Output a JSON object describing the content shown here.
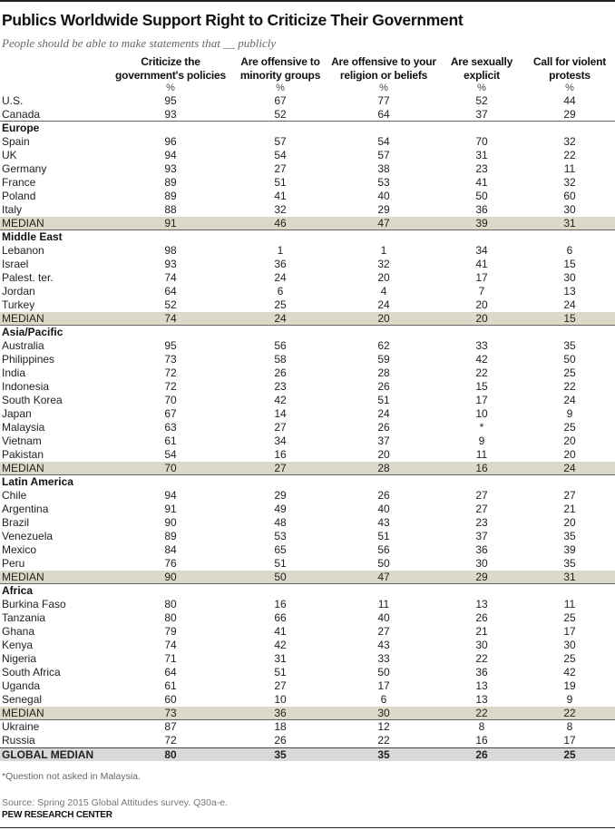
{
  "title": "Publics Worldwide Support Right to Criticize Their Government",
  "subtitle": "People should be able to make statements that __ publicly",
  "columns": [
    {
      "line1": "Criticize the",
      "line2": "government's policies",
      "unit": "%"
    },
    {
      "line1": "Are offensive to",
      "line2": "minority groups",
      "unit": "%"
    },
    {
      "line1": "Are offensive to your",
      "line2": "religion or beliefs",
      "unit": "%"
    },
    {
      "line1": "Are sexually",
      "line2": "explicit",
      "unit": "%"
    },
    {
      "line1": "Call for violent",
      "line2": "protests",
      "unit": "%"
    }
  ],
  "colors": {
    "median_fill": "#dcd9c8",
    "global_fill": "#d9d9d9"
  },
  "rows": [
    {
      "type": "country",
      "label": "U.S.",
      "values": [
        "95",
        "67",
        "77",
        "52",
        "44"
      ]
    },
    {
      "type": "country",
      "label": "Canada",
      "values": [
        "93",
        "52",
        "64",
        "37",
        "29"
      ],
      "rule": true
    },
    {
      "type": "region",
      "label": "Europe"
    },
    {
      "type": "country",
      "label": "Spain",
      "values": [
        "96",
        "57",
        "54",
        "70",
        "32"
      ]
    },
    {
      "type": "country",
      "label": "UK",
      "values": [
        "94",
        "54",
        "57",
        "31",
        "22"
      ]
    },
    {
      "type": "country",
      "label": "Germany",
      "values": [
        "93",
        "27",
        "38",
        "23",
        "11"
      ]
    },
    {
      "type": "country",
      "label": "France",
      "values": [
        "89",
        "51",
        "53",
        "41",
        "32"
      ]
    },
    {
      "type": "country",
      "label": "Poland",
      "values": [
        "89",
        "41",
        "40",
        "50",
        "60"
      ]
    },
    {
      "type": "country",
      "label": "Italy",
      "values": [
        "88",
        "32",
        "29",
        "36",
        "30"
      ]
    },
    {
      "type": "median",
      "label": "MEDIAN",
      "values": [
        "91",
        "46",
        "47",
        "39",
        "31"
      ],
      "rule": true
    },
    {
      "type": "region",
      "label": "Middle East"
    },
    {
      "type": "country",
      "label": "Lebanon",
      "values": [
        "98",
        "1",
        "1",
        "34",
        "6"
      ]
    },
    {
      "type": "country",
      "label": "Israel",
      "values": [
        "93",
        "36",
        "32",
        "41",
        "15"
      ]
    },
    {
      "type": "country",
      "label": "Palest. ter.",
      "values": [
        "74",
        "24",
        "20",
        "17",
        "30"
      ]
    },
    {
      "type": "country",
      "label": "Jordan",
      "values": [
        "64",
        "6",
        "4",
        "7",
        "13"
      ]
    },
    {
      "type": "country",
      "label": "Turkey",
      "values": [
        "52",
        "25",
        "24",
        "20",
        "24"
      ]
    },
    {
      "type": "median",
      "label": "MEDIAN",
      "values": [
        "74",
        "24",
        "20",
        "20",
        "15"
      ],
      "rule": true
    },
    {
      "type": "region",
      "label": "Asia/Pacific"
    },
    {
      "type": "country",
      "label": "Australia",
      "values": [
        "95",
        "56",
        "62",
        "33",
        "35"
      ]
    },
    {
      "type": "country",
      "label": "Philippines",
      "values": [
        "73",
        "58",
        "59",
        "42",
        "50"
      ]
    },
    {
      "type": "country",
      "label": "India",
      "values": [
        "72",
        "26",
        "28",
        "22",
        "25"
      ]
    },
    {
      "type": "country",
      "label": "Indonesia",
      "values": [
        "72",
        "23",
        "26",
        "15",
        "22"
      ]
    },
    {
      "type": "country",
      "label": "South Korea",
      "values": [
        "70",
        "42",
        "51",
        "17",
        "24"
      ]
    },
    {
      "type": "country",
      "label": "Japan",
      "values": [
        "67",
        "14",
        "24",
        "10",
        "9"
      ]
    },
    {
      "type": "country",
      "label": "Malaysia",
      "values": [
        "63",
        "27",
        "26",
        "*",
        "25"
      ]
    },
    {
      "type": "country",
      "label": "Vietnam",
      "values": [
        "61",
        "34",
        "37",
        "9",
        "20"
      ]
    },
    {
      "type": "country",
      "label": "Pakistan",
      "values": [
        "54",
        "16",
        "20",
        "11",
        "20"
      ]
    },
    {
      "type": "median",
      "label": "MEDIAN",
      "values": [
        "70",
        "27",
        "28",
        "16",
        "24"
      ],
      "rule": true
    },
    {
      "type": "region",
      "label": "Latin America"
    },
    {
      "type": "country",
      "label": "Chile",
      "values": [
        "94",
        "29",
        "26",
        "27",
        "27"
      ]
    },
    {
      "type": "country",
      "label": "Argentina",
      "values": [
        "91",
        "49",
        "40",
        "27",
        "21"
      ]
    },
    {
      "type": "country",
      "label": "Brazil",
      "values": [
        "90",
        "48",
        "43",
        "23",
        "20"
      ]
    },
    {
      "type": "country",
      "label": "Venezuela",
      "values": [
        "89",
        "53",
        "51",
        "37",
        "35"
      ]
    },
    {
      "type": "country",
      "label": "Mexico",
      "values": [
        "84",
        "65",
        "56",
        "36",
        "39"
      ]
    },
    {
      "type": "country",
      "label": "Peru",
      "values": [
        "76",
        "51",
        "50",
        "30",
        "35"
      ]
    },
    {
      "type": "median",
      "label": "MEDIAN",
      "values": [
        "90",
        "50",
        "47",
        "29",
        "31"
      ],
      "rule": true
    },
    {
      "type": "region",
      "label": "Africa"
    },
    {
      "type": "country",
      "label": "Burkina Faso",
      "values": [
        "80",
        "16",
        "11",
        "13",
        "11"
      ]
    },
    {
      "type": "country",
      "label": "Tanzania",
      "values": [
        "80",
        "66",
        "40",
        "26",
        "25"
      ]
    },
    {
      "type": "country",
      "label": "Ghana",
      "values": [
        "79",
        "41",
        "27",
        "21",
        "17"
      ]
    },
    {
      "type": "country",
      "label": "Kenya",
      "values": [
        "74",
        "42",
        "43",
        "30",
        "30"
      ]
    },
    {
      "type": "country",
      "label": "Nigeria",
      "values": [
        "71",
        "31",
        "33",
        "22",
        "25"
      ]
    },
    {
      "type": "country",
      "label": "South Africa",
      "values": [
        "64",
        "51",
        "50",
        "36",
        "42"
      ]
    },
    {
      "type": "country",
      "label": "Uganda",
      "values": [
        "61",
        "27",
        "17",
        "13",
        "19"
      ]
    },
    {
      "type": "country",
      "label": "Senegal",
      "values": [
        "60",
        "10",
        "6",
        "13",
        "9"
      ]
    },
    {
      "type": "median",
      "label": "MEDIAN",
      "values": [
        "73",
        "36",
        "30",
        "22",
        "22"
      ],
      "rule": true
    },
    {
      "type": "country",
      "label": "Ukraine",
      "values": [
        "87",
        "18",
        "12",
        "8",
        "8"
      ]
    },
    {
      "type": "country",
      "label": "Russia",
      "values": [
        "72",
        "26",
        "22",
        "16",
        "17"
      ]
    },
    {
      "type": "global",
      "label": "GLOBAL MEDIAN",
      "values": [
        "80",
        "35",
        "35",
        "26",
        "25"
      ]
    }
  ],
  "footnote": "*Question not asked in Malaysia.",
  "source": "Source: Spring 2015 Global Attitudes survey. Q30a-e.",
  "brand": "PEW RESEARCH CENTER"
}
